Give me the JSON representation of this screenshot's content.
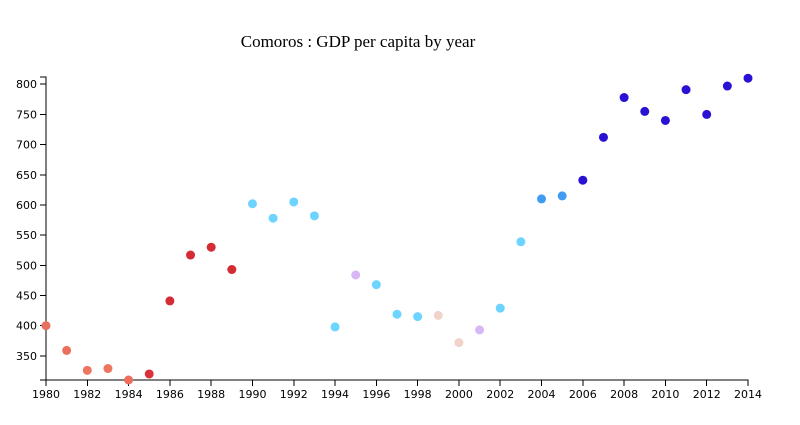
{
  "chart_data": {
    "type": "scatter",
    "title": "Comoros : GDP per capita by year",
    "xlabel": "",
    "ylabel": "",
    "xlim": [
      1980,
      2014
    ],
    "ylim": [
      310,
      812
    ],
    "x_ticks": [
      "1980",
      "1982",
      "1984",
      "1986",
      "1988",
      "1990",
      "1992",
      "1994",
      "1996",
      "1998",
      "2000",
      "2002",
      "2004",
      "2006",
      "2008",
      "2010",
      "2012",
      "2014"
    ],
    "y_ticks": [
      "350",
      "400",
      "450",
      "500",
      "550",
      "600",
      "650",
      "700",
      "750",
      "800"
    ],
    "grid": false,
    "legend": "none",
    "points": [
      {
        "x": 1980,
        "y": 400,
        "color": "#e8705e"
      },
      {
        "x": 1981,
        "y": 359,
        "color": "#ec6f5c"
      },
      {
        "x": 1982,
        "y": 326,
        "color": "#ee7560"
      },
      {
        "x": 1983,
        "y": 329,
        "color": "#ee7560"
      },
      {
        "x": 1984,
        "y": 310,
        "color": "#ec6f5c"
      },
      {
        "x": 1985,
        "y": 320,
        "color": "#d9303a"
      },
      {
        "x": 1986,
        "y": 441,
        "color": "#d42b34"
      },
      {
        "x": 1987,
        "y": 517,
        "color": "#d42b34"
      },
      {
        "x": 1988,
        "y": 530,
        "color": "#d42b34"
      },
      {
        "x": 1989,
        "y": 493,
        "color": "#d42b34"
      },
      {
        "x": 1990,
        "y": 602,
        "color": "#6dd3ff"
      },
      {
        "x": 1991,
        "y": 578,
        "color": "#6dd3ff"
      },
      {
        "x": 1992,
        "y": 605,
        "color": "#6dd3ff"
      },
      {
        "x": 1993,
        "y": 582,
        "color": "#6dd3ff"
      },
      {
        "x": 1994,
        "y": 398,
        "color": "#6dd3ff"
      },
      {
        "x": 1995,
        "y": 484,
        "color": "#d7b8f5"
      },
      {
        "x": 1996,
        "y": 468,
        "color": "#6dd3ff"
      },
      {
        "x": 1997,
        "y": 419,
        "color": "#6dd3ff"
      },
      {
        "x": 1998,
        "y": 415,
        "color": "#6dd3ff"
      },
      {
        "x": 1999,
        "y": 417,
        "color": "#f2d3cc"
      },
      {
        "x": 2000,
        "y": 372,
        "color": "#f2d3cc"
      },
      {
        "x": 2001,
        "y": 393,
        "color": "#d7b8f5"
      },
      {
        "x": 2002,
        "y": 429,
        "color": "#6dd3ff"
      },
      {
        "x": 2003,
        "y": 539,
        "color": "#6dd3ff"
      },
      {
        "x": 2004,
        "y": 610,
        "color": "#3f9cf2"
      },
      {
        "x": 2005,
        "y": 615,
        "color": "#3f9cf2"
      },
      {
        "x": 2006,
        "y": 641,
        "color": "#2a12d4"
      },
      {
        "x": 2007,
        "y": 712,
        "color": "#2a12d4"
      },
      {
        "x": 2008,
        "y": 778,
        "color": "#2a12d4"
      },
      {
        "x": 2009,
        "y": 755,
        "color": "#2a12d4"
      },
      {
        "x": 2010,
        "y": 740,
        "color": "#2a12d4"
      },
      {
        "x": 2011,
        "y": 791,
        "color": "#2a12d4"
      },
      {
        "x": 2012,
        "y": 750,
        "color": "#2a12d4"
      },
      {
        "x": 2013,
        "y": 797,
        "color": "#2a12d4"
      },
      {
        "x": 2014,
        "y": 810,
        "color": "#2a12d4"
      }
    ]
  }
}
